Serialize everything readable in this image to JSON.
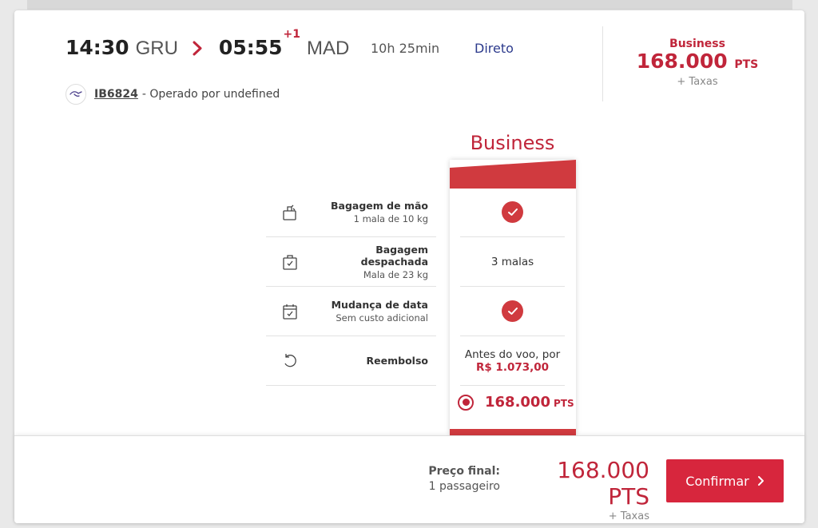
{
  "flight": {
    "departure_time": "14:30",
    "departure_airport": "GRU",
    "arrival_time": "05:55",
    "arrival_day_offset": "+1",
    "arrival_airport": "MAD",
    "duration": "10h 25min",
    "stops": "Direto",
    "flight_number": "IB6824",
    "operated_by": "- Operado por undefined"
  },
  "header_price": {
    "cabin": "Business",
    "points": "168.000",
    "points_unit": "PTS",
    "taxes": "+ Taxas"
  },
  "comparison": {
    "cabin_title": "Business",
    "features": [
      {
        "title": "Bagagem de mão",
        "subtitle": "1 mala de 10 kg",
        "icon": "carry-on-bag-icon",
        "value_type": "check"
      },
      {
        "title": "Bagagem despachada",
        "subtitle": "Mala de 23 kg",
        "icon": "checked-bag-icon",
        "value": "3 malas"
      },
      {
        "title": "Mudança de data",
        "subtitle": "Sem custo adicional",
        "icon": "calendar-change-icon",
        "value_type": "check"
      },
      {
        "title": "Reembolso",
        "subtitle": "",
        "icon": "refund-icon",
        "value": "Antes do voo, por",
        "value_price": "R$ 1.073,00"
      }
    ],
    "fare_option": {
      "points": "168.000",
      "points_unit": "PTS",
      "selected": true
    }
  },
  "footer": {
    "final_price_label": "Preço final:",
    "passengers": "1 passageiro",
    "points": "168.000 PTS",
    "taxes": "+ Taxas",
    "confirm_label": "Confirmar"
  },
  "colors": {
    "brand_red": "#d7263d",
    "text_red": "#c0253a",
    "link_blue": "#2c3a8c"
  }
}
